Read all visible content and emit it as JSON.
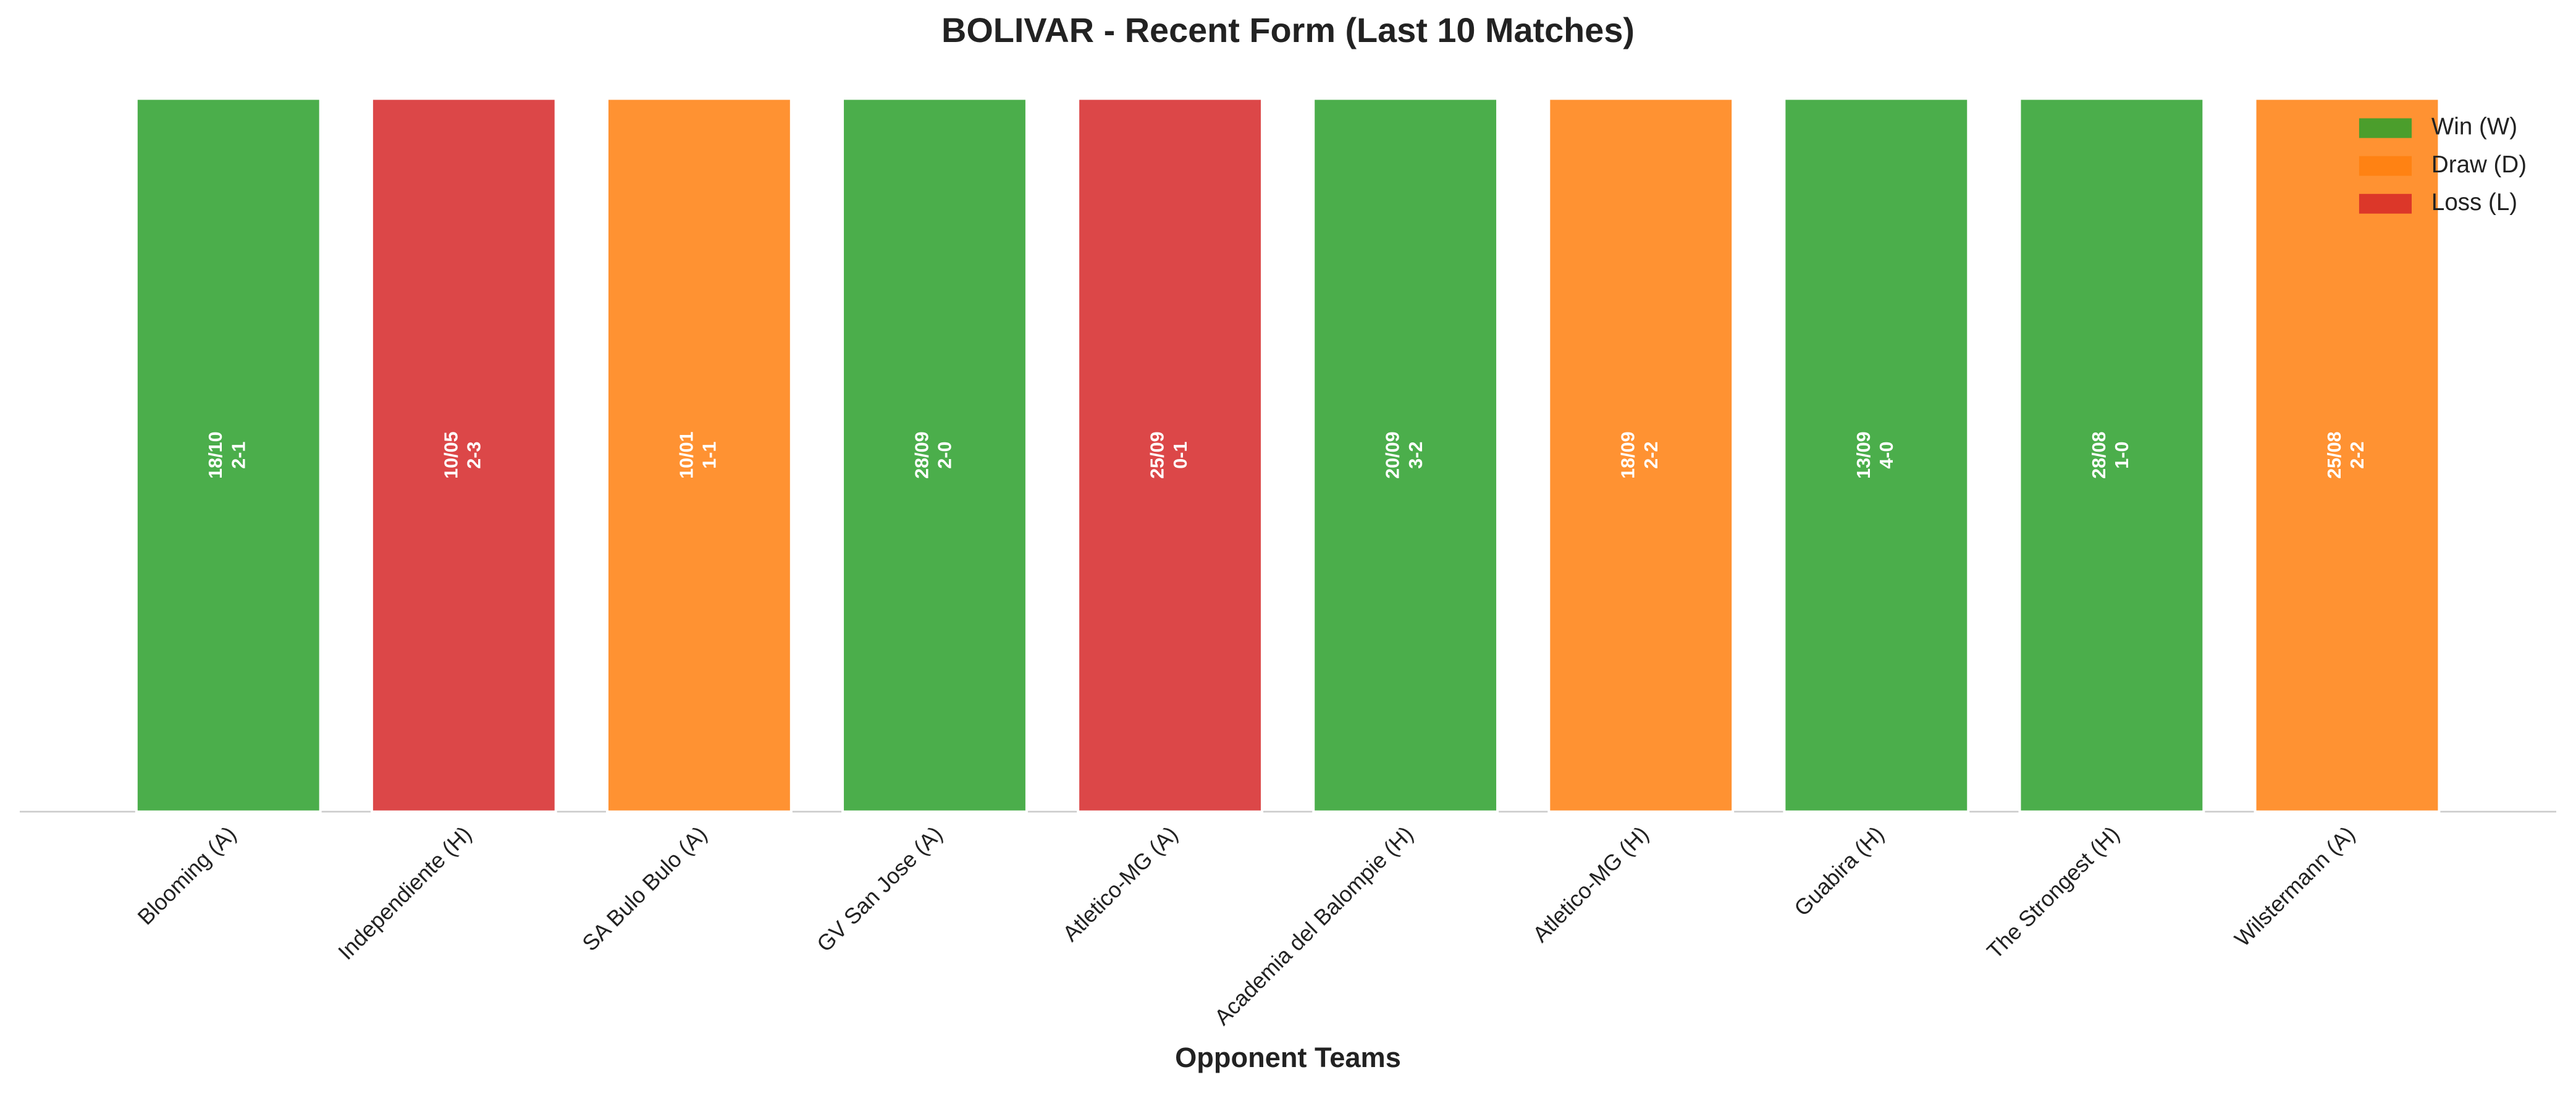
{
  "chart_data": {
    "type": "bar",
    "title": "BOLIVAR - Recent Form (Last 10 Matches)",
    "x_label": "Opponent Teams",
    "categories": [
      "Blooming (A)",
      "Independiente (H)",
      "SA Bulo Bulo (A)",
      "GV San Jose (A)",
      "Atletico-MG (A)",
      "Academia del Balompie (H)",
      "Atletico-MG (H)",
      "Guabira (H)",
      "The Strongest (H)",
      "Wilstermann (A)"
    ],
    "values": [
      1,
      1,
      1,
      1,
      1,
      1,
      1,
      1,
      1,
      1
    ],
    "colors": [
      "#2ca02c",
      "#d62728",
      "#ff7f0e",
      "#2ca02c",
      "#d62728",
      "#2ca02c",
      "#ff7f0e",
      "#2ca02c",
      "#2ca02c",
      "#ff7f0e"
    ],
    "bar_labels": [
      {
        "date": "18/10",
        "score": "2-1"
      },
      {
        "date": "10/05",
        "score": "2-3"
      },
      {
        "date": "10/01",
        "score": "1-1"
      },
      {
        "date": "28/09",
        "score": "2-0"
      },
      {
        "date": "25/09",
        "score": "0-1"
      },
      {
        "date": "20/09",
        "score": "3-2"
      },
      {
        "date": "18/09",
        "score": "2-2"
      },
      {
        "date": "13/09",
        "score": "4-0"
      },
      {
        "date": "28/08",
        "score": "1-0"
      },
      {
        "date": "25/08",
        "score": "2-2"
      }
    ],
    "ylim": [
      0,
      1
    ],
    "legend_position": "upper right",
    "legend": [
      {
        "name": "Win (W)",
        "color": "#2ca02c"
      },
      {
        "name": "Draw (D)",
        "color": "#ff7f0e"
      },
      {
        "name": "Loss (L)",
        "color": "#d62728"
      }
    ]
  }
}
